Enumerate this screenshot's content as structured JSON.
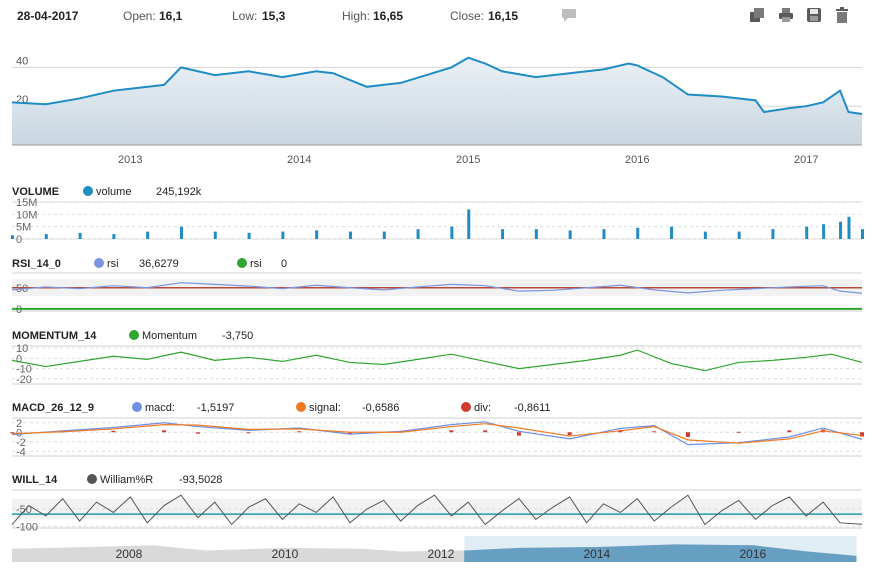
{
  "ohlc": {
    "date": "28-04-2017",
    "open_label": "Open:",
    "open": "16,1",
    "low_label": "Low:",
    "low": "15,3",
    "high_label": "High:",
    "high": "16,65",
    "close_label": "Close:",
    "close": "16,15"
  },
  "toolbar": {
    "icons": [
      "comment-icon",
      "export-icon",
      "print-icon",
      "save-icon",
      "delete-icon"
    ]
  },
  "colors": {
    "price_line": "#1f8dc4",
    "volume_bar": "#1f8dc4",
    "rsi": "#7a94e0",
    "rsi_threshold": "#b84a3a",
    "rsi_zero": "#2fa52f",
    "momentum": "#2fa52f",
    "macd": "#6f8fe0",
    "signal": "#f07a22",
    "div": "#d03a30",
    "will": "#555555",
    "will_mid": "#1f9aaa",
    "navigator_selected": "#4f90b8",
    "navigator_unselected": "#d9d9d9"
  },
  "chart_data": [
    {
      "type": "area",
      "id": "price",
      "yticks": [
        "40",
        "20",
        "0"
      ],
      "ylim": [
        0,
        50
      ],
      "xtick_labels": [
        "2013",
        "2014",
        "2015",
        "2016",
        "2017"
      ],
      "xlim": [
        2012.3,
        2017.33
      ],
      "series": [
        {
          "x": [
            2012.3,
            2012.5,
            2012.7,
            2012.9,
            2013.0,
            2013.2,
            2013.3,
            2013.5,
            2013.7,
            2013.9,
            2014.1,
            2014.2,
            2014.4,
            2014.6,
            2014.75,
            2014.9,
            2015.0,
            2015.1,
            2015.2,
            2015.4,
            2015.6,
            2015.8,
            2015.95,
            2016.0,
            2016.15,
            2016.3,
            2016.5,
            2016.7,
            2016.75,
            2016.9,
            2017.0,
            2017.1,
            2017.2,
            2017.25,
            2017.33
          ],
          "y": [
            22,
            21,
            24,
            28,
            29,
            31,
            40,
            36,
            38,
            35,
            38,
            37,
            30,
            32,
            36,
            40,
            45,
            42,
            38,
            35,
            37,
            39,
            42,
            41,
            35,
            26,
            25,
            23,
            17,
            19,
            20,
            22,
            28,
            17,
            16
          ]
        }
      ]
    },
    {
      "type": "bar",
      "id": "volume",
      "title": "VOLUME",
      "series": [
        {
          "name": "volume",
          "last_value": "245,192k"
        }
      ],
      "yticks": [
        "15M",
        "10M",
        "5M",
        "0"
      ],
      "ylim": [
        0,
        15
      ],
      "x": [
        2012.3,
        2012.5,
        2012.7,
        2012.9,
        2013.1,
        2013.3,
        2013.5,
        2013.7,
        2013.9,
        2014.1,
        2014.3,
        2014.5,
        2014.7,
        2014.9,
        2015.0,
        2015.2,
        2015.4,
        2015.6,
        2015.8,
        2016.0,
        2016.2,
        2016.4,
        2016.6,
        2016.8,
        2017.0,
        2017.1,
        2017.2,
        2017.25,
        2017.33
      ],
      "values": [
        1.5,
        2,
        2.5,
        2,
        3,
        5,
        3,
        2.5,
        3,
        3.5,
        3,
        3,
        4,
        5,
        12,
        4,
        4,
        3.5,
        4,
        4.5,
        5,
        3,
        3,
        4,
        5,
        6,
        7,
        9,
        4
      ]
    },
    {
      "type": "line",
      "id": "rsi",
      "title": "RSI_14_0",
      "series": [
        {
          "name": "rsi",
          "last_value": "36,6279"
        },
        {
          "name": "rsi",
          "last_value": "0"
        }
      ],
      "yticks": [
        "50",
        "0"
      ],
      "ylim": [
        -5,
        85
      ],
      "thresholds": [
        30,
        70
      ],
      "x": [
        2012.3,
        2012.5,
        2012.7,
        2012.9,
        2013.1,
        2013.3,
        2013.5,
        2013.7,
        2013.9,
        2014.1,
        2014.3,
        2014.5,
        2014.7,
        2014.9,
        2015.1,
        2015.3,
        2015.5,
        2015.7,
        2015.9,
        2016.1,
        2016.3,
        2016.5,
        2016.7,
        2016.9,
        2017.1,
        2017.2,
        2017.33
      ],
      "values": [
        45,
        52,
        48,
        55,
        50,
        62,
        58,
        54,
        48,
        56,
        50,
        45,
        52,
        58,
        55,
        42,
        44,
        50,
        56,
        45,
        38,
        44,
        48,
        52,
        55,
        42,
        37
      ]
    },
    {
      "type": "line",
      "id": "momentum",
      "title": "MOMENTUM_14",
      "series": [
        {
          "name": "Momentum",
          "last_value": "-3,750"
        }
      ],
      "yticks": [
        "10",
        "0",
        "-10",
        "-20"
      ],
      "ylim": [
        -25,
        12
      ],
      "x": [
        2012.3,
        2012.5,
        2012.7,
        2012.9,
        2013.1,
        2013.3,
        2013.5,
        2013.7,
        2013.9,
        2014.1,
        2014.3,
        2014.5,
        2014.7,
        2014.9,
        2015.1,
        2015.3,
        2015.5,
        2015.7,
        2015.9,
        2016.0,
        2016.2,
        2016.4,
        2016.6,
        2016.8,
        2017.0,
        2017.15,
        2017.33
      ],
      "values": [
        -2,
        -8,
        -3,
        2,
        -1,
        6,
        -2,
        1,
        -3,
        3,
        -4,
        -6,
        -1,
        4,
        -3,
        -10,
        -6,
        -2,
        3,
        8,
        -5,
        -12,
        -4,
        -2,
        1,
        4,
        -4
      ]
    },
    {
      "type": "line",
      "id": "macd",
      "title": "MACD_26_12_9",
      "series": [
        {
          "name": "macd:",
          "last_value": "-1,5197"
        },
        {
          "name": "signal:",
          "last_value": "-0,6586"
        },
        {
          "name": "div:",
          "last_value": "-0,8611"
        }
      ],
      "yticks": [
        "2",
        "0",
        "-2",
        "-4"
      ],
      "ylim": [
        -5,
        3
      ],
      "x": [
        2012.3,
        2012.6,
        2012.9,
        2013.2,
        2013.4,
        2013.7,
        2014.0,
        2014.3,
        2014.6,
        2014.9,
        2015.1,
        2015.3,
        2015.6,
        2015.9,
        2016.1,
        2016.3,
        2016.6,
        2016.9,
        2017.1,
        2017.33
      ],
      "macd": [
        -0.5,
        0.3,
        1.0,
        2.0,
        1.2,
        0.4,
        0.9,
        -0.4,
        0.2,
        1.6,
        2.2,
        0.2,
        -1.4,
        0.8,
        1.4,
        -2.6,
        -2.2,
        -1.0,
        0.9,
        -1.5
      ],
      "signal": [
        -0.3,
        0.1,
        0.7,
        1.6,
        1.5,
        0.6,
        0.7,
        0.0,
        0.0,
        1.2,
        1.8,
        0.9,
        -0.8,
        0.3,
        1.2,
        -1.6,
        -2.3,
        -1.4,
        0.3,
        -0.7
      ],
      "div": [
        -0.2,
        0.2,
        0.3,
        0.4,
        -0.3,
        -0.2,
        0.2,
        -0.4,
        0.2,
        0.4,
        0.4,
        -0.7,
        -0.6,
        0.5,
        0.2,
        -1.0,
        0.1,
        0.4,
        0.6,
        -0.9
      ]
    },
    {
      "type": "line",
      "id": "will",
      "title": "WILL_14",
      "series": [
        {
          "name": "William%R",
          "last_value": "-93,5028"
        }
      ],
      "yticks": [
        "-50",
        "-100"
      ],
      "ylim": [
        -105,
        5
      ],
      "x": [
        2012.3,
        2012.4,
        2012.5,
        2012.6,
        2012.7,
        2012.8,
        2012.9,
        2013.0,
        2013.1,
        2013.2,
        2013.3,
        2013.4,
        2013.5,
        2013.6,
        2013.7,
        2013.8,
        2013.9,
        2014.0,
        2014.1,
        2014.2,
        2014.3,
        2014.4,
        2014.5,
        2014.6,
        2014.7,
        2014.8,
        2014.9,
        2015.0,
        2015.1,
        2015.2,
        2015.3,
        2015.4,
        2015.5,
        2015.6,
        2015.7,
        2015.8,
        2015.9,
        2016.0,
        2016.1,
        2016.2,
        2016.3,
        2016.4,
        2016.5,
        2016.6,
        2016.7,
        2016.8,
        2016.9,
        2017.0,
        2017.1,
        2017.2,
        2017.33
      ],
      "values": [
        -95,
        -40,
        -70,
        -20,
        -85,
        -30,
        -60,
        -15,
        -90,
        -40,
        -10,
        -75,
        -30,
        -95,
        -45,
        -20,
        -80,
        -35,
        -60,
        -15,
        -90,
        -50,
        -25,
        -85,
        -40,
        -10,
        -70,
        -30,
        -95,
        -55,
        -20,
        -80,
        -45,
        -15,
        -90,
        -35,
        -60,
        -20,
        -85,
        -45,
        -10,
        -95,
        -55,
        -25,
        -80,
        -40,
        -15,
        -70,
        -30,
        -90,
        -94
      ]
    },
    {
      "type": "area",
      "id": "navigator",
      "xtick_labels": [
        "2008",
        "2010",
        "2012",
        "2014",
        "2016"
      ],
      "xlim": [
        2006.5,
        2017.4
      ],
      "selected_range": [
        2012.3,
        2017.33
      ],
      "x": [
        2006.5,
        2007.5,
        2008.3,
        2009.0,
        2010.0,
        2011.0,
        2011.5,
        2012.3,
        2013.0,
        2014.0,
        2015.0,
        2016.0,
        2016.7,
        2017.33
      ],
      "values": [
        30,
        34,
        38,
        26,
        32,
        30,
        24,
        26,
        32,
        34,
        40,
        38,
        24,
        14
      ],
      "ylim": [
        0,
        50
      ]
    }
  ]
}
